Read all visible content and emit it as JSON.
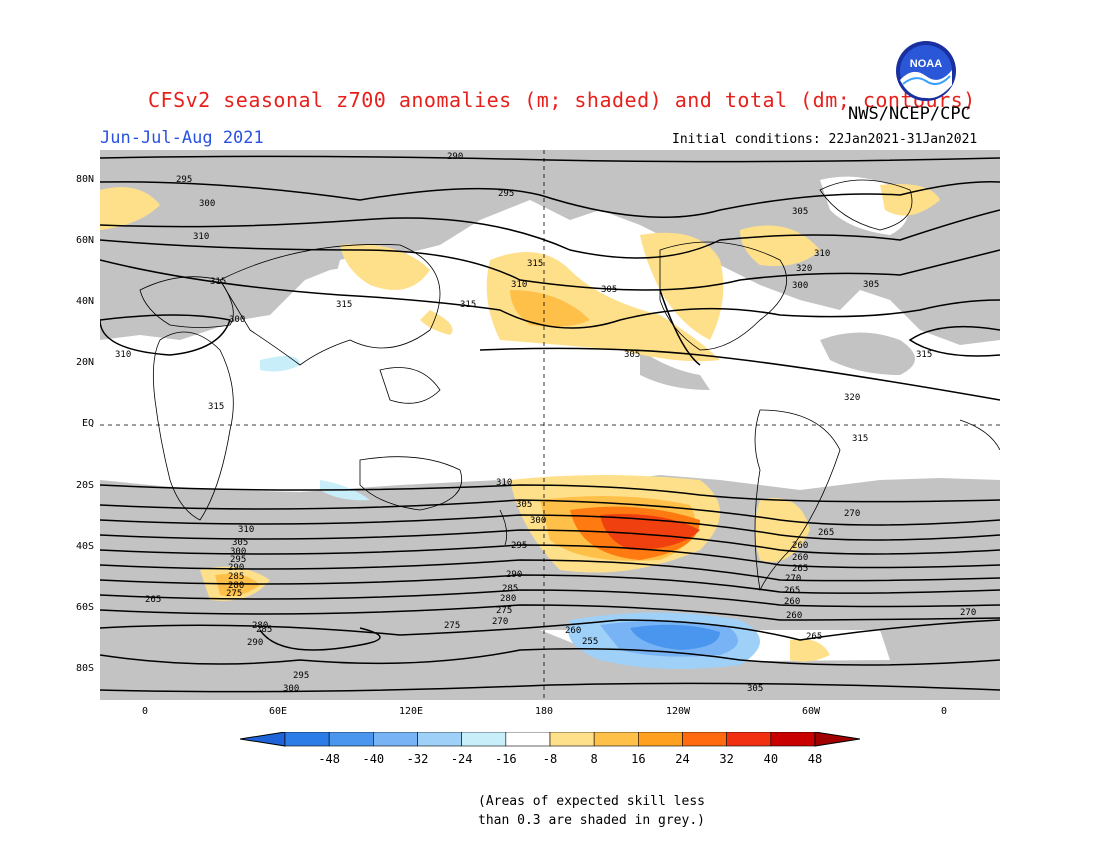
{
  "header": {
    "title": "CFSv2 seasonal z700 anomalies (m; shaded) and total (dm; contours)",
    "agency": "NWS/NCEP/CPC",
    "period": "Jun-Jul-Aug 2021",
    "initial_conditions": "Initial conditions: 22Jan2021-31Jan2021",
    "logo_text": "NOAA"
  },
  "map": {
    "projection": "equirectangular",
    "longitude_range": [
      -20,
      380
    ],
    "latitude_range": [
      -90,
      90
    ],
    "lat_labels": [
      "80N",
      "60N",
      "40N",
      "20N",
      "EQ",
      "20S",
      "40S",
      "60S",
      "80S"
    ],
    "lon_labels": [
      "0",
      "60E",
      "120E",
      "180",
      "120W",
      "60W",
      "0"
    ],
    "contour_labels": [
      "290",
      "295",
      "295",
      "300",
      "305",
      "310",
      "310",
      "315",
      "320",
      "315",
      "310",
      "305",
      "300",
      "305",
      "315",
      "315",
      "300",
      "305",
      "310",
      "315",
      "320",
      "315",
      "315",
      "310",
      "305",
      "300",
      "295",
      "290",
      "285",
      "280",
      "275",
      "270",
      "265",
      "260",
      "255",
      "310",
      "305",
      "300",
      "295",
      "290",
      "285",
      "280",
      "275",
      "270",
      "265",
      "260",
      "260",
      "265",
      "270",
      "265",
      "260",
      "260",
      "265",
      "270",
      "275",
      "280",
      "285",
      "290",
      "295",
      "300",
      "305",
      "310"
    ],
    "colors": {
      "ocean_land_base": "#ffffff",
      "low_skill_grey": "#c0c0c0",
      "coastline": "#000000",
      "contour": "#000000"
    }
  },
  "colorbar": {
    "labels": [
      "-48",
      "-40",
      "-32",
      "-24",
      "-16",
      "-8",
      "8",
      "16",
      "24",
      "32",
      "40",
      "48"
    ],
    "colors": [
      "#1e64d8",
      "#2b7ce6",
      "#4a96ef",
      "#78b4f5",
      "#9fd0f8",
      "#c8eefa",
      "#ffffff",
      "#ffe08a",
      "#ffc04a",
      "#ffa020",
      "#ff6a10",
      "#f03010",
      "#c80000",
      "#a00000"
    ]
  },
  "note": {
    "line1": "(Areas of expected skill less",
    "line2": "than 0.3 are shaded in grey.)"
  }
}
